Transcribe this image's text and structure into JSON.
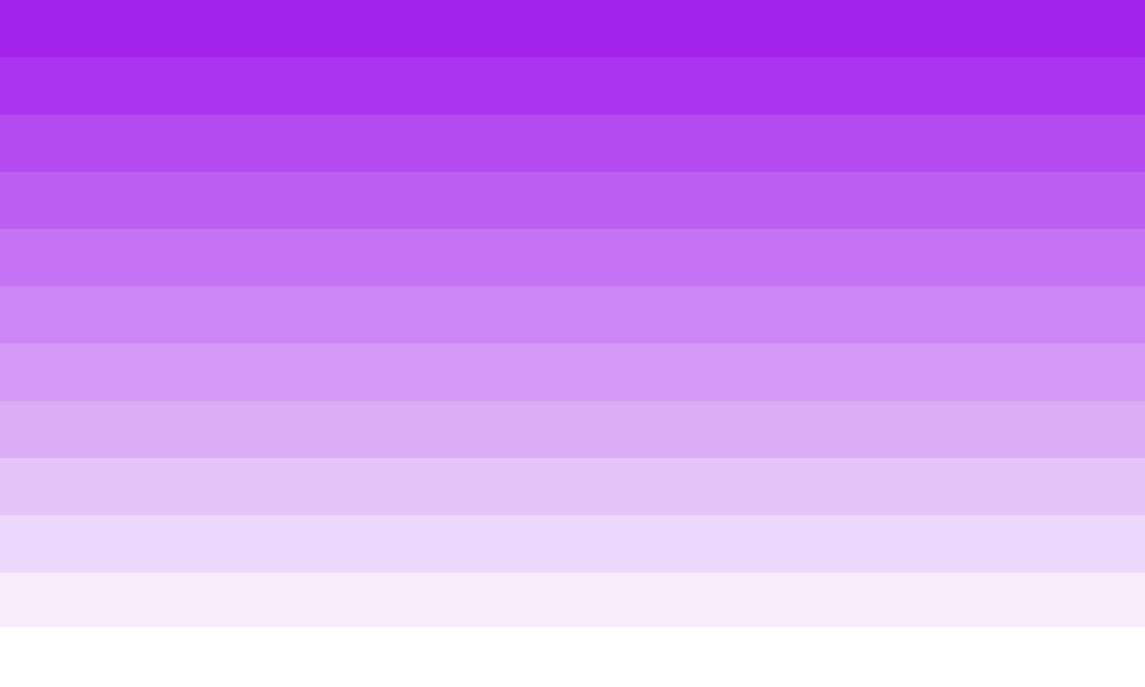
{
  "swatches": [
    {
      "color": "#a222ec"
    },
    {
      "color": "#ab35ef"
    },
    {
      "color": "#b44bf0"
    },
    {
      "color": "#bc5ff2"
    },
    {
      "color": "#c573f4"
    },
    {
      "color": "#cc86f5"
    },
    {
      "color": "#d699f6"
    },
    {
      "color": "#dcadf5"
    },
    {
      "color": "#e4c3f8"
    },
    {
      "color": "#ecd8fc"
    },
    {
      "color": "#f7ebfc"
    }
  ],
  "background": "#ffffff"
}
